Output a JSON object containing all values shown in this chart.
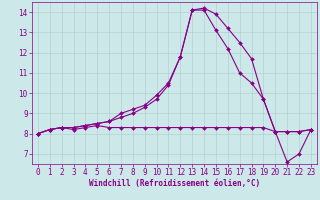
{
  "xlabel": "Windchill (Refroidissement éolien,°C)",
  "background_color": "#cce8e8",
  "line_color": "#880088",
  "grid_color": "#aacccc",
  "xlim": [
    -0.5,
    23.5
  ],
  "ylim": [
    6.5,
    14.5
  ],
  "yticks": [
    7,
    8,
    9,
    10,
    11,
    12,
    13,
    14
  ],
  "xticks": [
    0,
    1,
    2,
    3,
    4,
    5,
    6,
    7,
    8,
    9,
    10,
    11,
    12,
    13,
    14,
    15,
    16,
    17,
    18,
    19,
    20,
    21,
    22,
    23
  ],
  "series1_x": [
    0,
    1,
    2,
    3,
    4,
    5,
    6,
    7,
    8,
    9,
    10,
    11,
    12,
    13,
    14,
    15,
    16,
    17,
    18,
    19,
    20,
    21,
    22,
    23
  ],
  "series1_y": [
    8.0,
    8.2,
    8.3,
    8.2,
    8.3,
    8.4,
    8.3,
    8.3,
    8.3,
    8.3,
    8.3,
    8.3,
    8.3,
    8.3,
    8.3,
    8.3,
    8.3,
    8.3,
    8.3,
    8.3,
    8.1,
    8.1,
    8.1,
    8.2
  ],
  "series2_x": [
    0,
    1,
    2,
    3,
    4,
    5,
    6,
    7,
    8,
    9,
    10,
    11,
    12,
    13,
    14,
    15,
    16,
    17,
    18,
    19,
    20,
    21,
    22,
    23
  ],
  "series2_y": [
    8.0,
    8.2,
    8.3,
    8.3,
    8.4,
    8.5,
    8.6,
    9.0,
    9.2,
    9.4,
    9.9,
    10.5,
    11.8,
    14.1,
    14.1,
    13.1,
    12.2,
    11.0,
    10.5,
    9.7,
    8.1,
    8.1,
    8.1,
    8.2
  ],
  "series3_x": [
    0,
    1,
    2,
    3,
    4,
    5,
    6,
    7,
    8,
    9,
    10,
    11,
    12,
    13,
    14,
    15,
    16,
    17,
    18,
    19,
    20,
    21,
    22,
    23
  ],
  "series3_y": [
    8.0,
    8.2,
    8.3,
    8.3,
    8.4,
    8.5,
    8.6,
    8.8,
    9.0,
    9.3,
    9.7,
    10.4,
    11.8,
    14.1,
    14.2,
    13.9,
    13.2,
    12.5,
    11.7,
    9.7,
    8.1,
    6.6,
    7.0,
    8.2
  ],
  "tick_fontsize": 5.5,
  "xlabel_fontsize": 5.5,
  "marker_size": 2.0,
  "line_width": 0.8
}
